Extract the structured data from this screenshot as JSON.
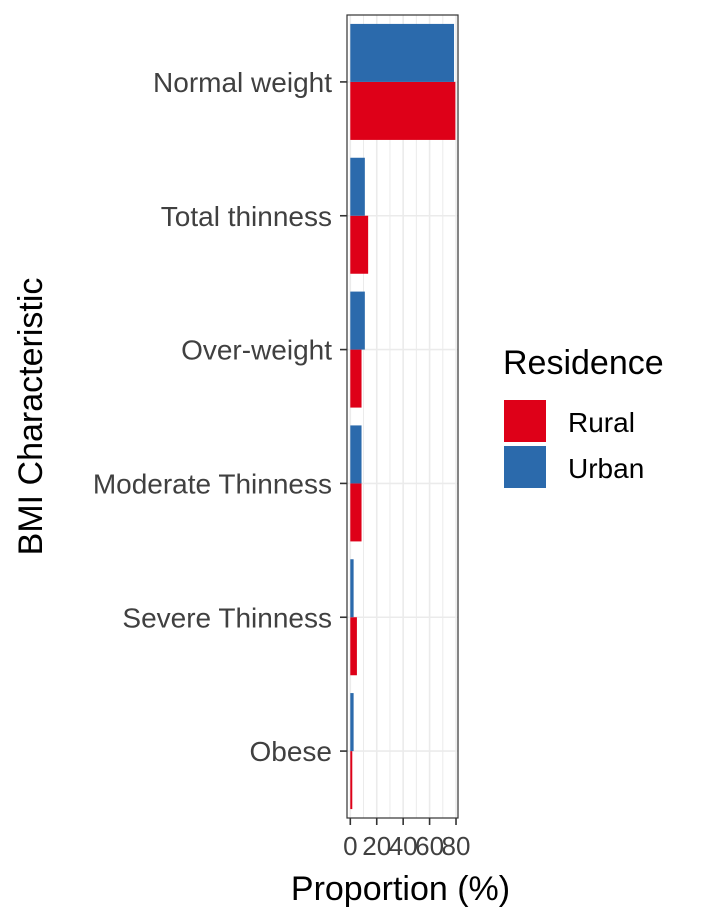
{
  "chart_data": {
    "type": "bar",
    "orientation": "horizontal",
    "categories": [
      "Normal weight",
      "Total thinness",
      "Over-weight",
      "Moderate Thinness",
      "Severe Thinness",
      "Obese"
    ],
    "series": [
      {
        "name": "Rural",
        "values": [
          79.5,
          13.5,
          8.5,
          8.5,
          5.0,
          1.5
        ],
        "color": "#de0018"
      },
      {
        "name": "Urban",
        "values": [
          78.5,
          11.0,
          11.0,
          8.5,
          2.5,
          2.5
        ],
        "color": "#2b6aac"
      }
    ],
    "xlabel": "Proportion (%)",
    "ylabel": "BMI Characteristic",
    "xlim": [
      -2.5,
      81.5
    ],
    "x_ticks": [
      "0",
      "20",
      "40",
      "60",
      "80"
    ],
    "x_tick_values": [
      0,
      20,
      40,
      60,
      80
    ],
    "grid": true,
    "legend": {
      "title": "Residence",
      "position": "right"
    }
  }
}
